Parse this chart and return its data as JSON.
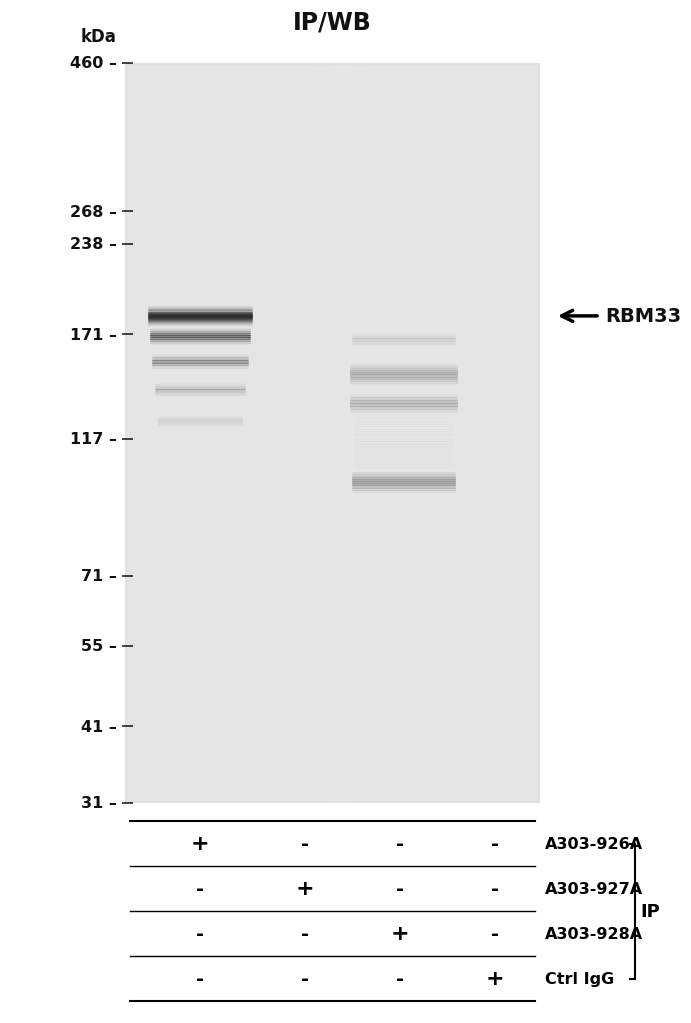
{
  "title": "IP/WB",
  "title_fontsize": 17,
  "bg_color": "#e8e8e8",
  "outer_bg": "#ffffff",
  "kda_label": "kDa",
  "mw_markers": [
    460,
    268,
    238,
    171,
    117,
    71,
    55,
    41,
    31
  ],
  "rbm33_label": "RBM33",
  "row_labels": [
    "A303-926A",
    "A303-927A",
    "A303-928A",
    "Ctrl IgG"
  ],
  "ip_label": "IP",
  "lane_signs": [
    [
      "+",
      "-",
      "-",
      "-"
    ],
    [
      "-",
      "+",
      "-",
      "-"
    ],
    [
      "-",
      "-",
      "+",
      "-"
    ],
    [
      "-",
      "-",
      "-",
      "+"
    ]
  ]
}
